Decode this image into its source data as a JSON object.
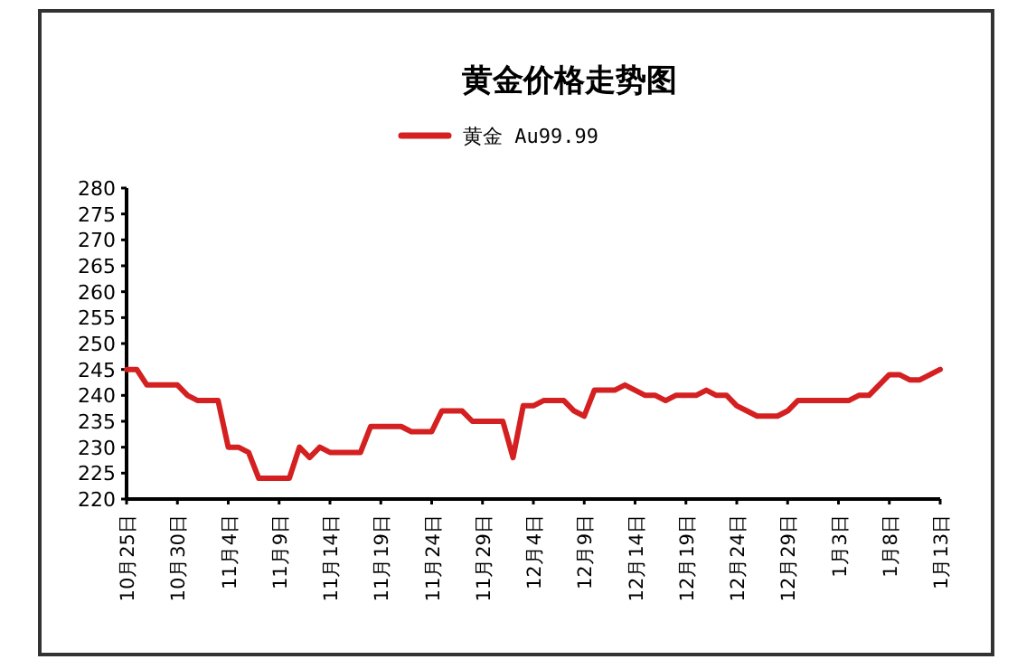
{
  "chart_data": {
    "type": "line",
    "title": "黄金价格走势图",
    "categories": [
      "10月25日",
      null,
      null,
      null,
      null,
      "10月30日",
      null,
      null,
      null,
      null,
      "11月4日",
      null,
      null,
      null,
      null,
      "11月9日",
      null,
      null,
      null,
      null,
      "11月14日",
      null,
      null,
      null,
      null,
      "11月19日",
      null,
      null,
      null,
      null,
      "11月24日",
      null,
      null,
      null,
      null,
      "11月29日",
      null,
      null,
      null,
      null,
      "12月4日",
      null,
      null,
      null,
      null,
      "12月9日",
      null,
      null,
      null,
      null,
      "12月14日",
      null,
      null,
      null,
      null,
      "12月19日",
      null,
      null,
      null,
      null,
      "12月24日",
      null,
      null,
      null,
      null,
      "12月29日",
      null,
      null,
      null,
      null,
      "1月3日",
      null,
      null,
      null,
      null,
      "1月8日",
      null,
      null,
      null,
      null,
      "1月13日"
    ],
    "series": [
      {
        "name": "黄金 Au99.99",
        "color": "#d42020",
        "values": [
          245,
          245,
          242,
          242,
          242,
          242,
          240,
          239,
          239,
          239,
          230,
          230,
          229,
          224,
          224,
          224,
          224,
          230,
          228,
          230,
          229,
          229,
          229,
          229,
          234,
          234,
          234,
          234,
          233,
          233,
          233,
          237,
          237,
          237,
          235,
          235,
          235,
          235,
          228,
          238,
          238,
          239,
          239,
          239,
          237,
          236,
          241,
          241,
          241,
          242,
          241,
          240,
          240,
          239,
          240,
          240,
          240,
          241,
          240,
          240,
          238,
          237,
          236,
          236,
          236,
          237,
          239,
          239,
          239,
          239,
          239,
          239,
          240,
          240,
          242,
          244,
          244,
          243,
          243,
          244,
          245
        ]
      }
    ],
    "ylim": [
      220,
      280
    ],
    "yticks": [
      220,
      225,
      230,
      235,
      240,
      245,
      250,
      255,
      260,
      265,
      270,
      275,
      280
    ],
    "legend": "top",
    "grid": false,
    "marker": "none",
    "line_style": "solid"
  }
}
